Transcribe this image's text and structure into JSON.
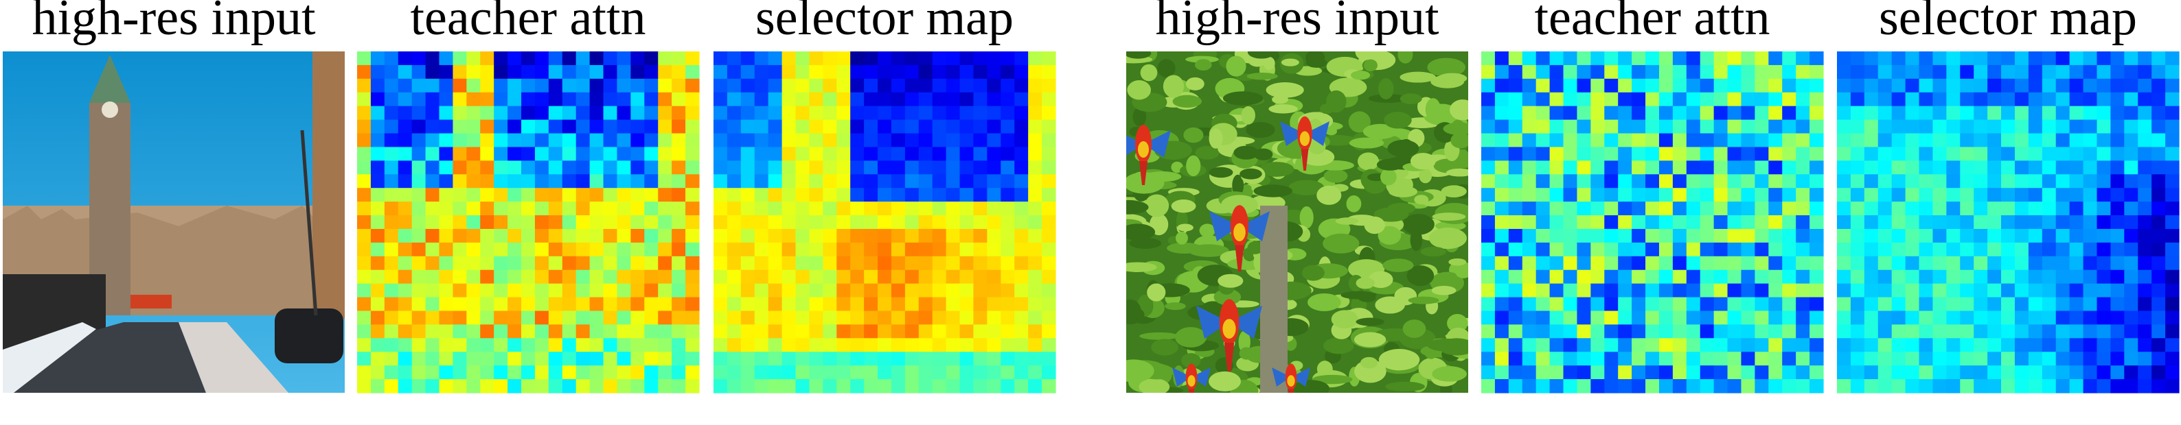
{
  "panels": [
    {
      "title": "high-res input"
    },
    {
      "title": "teacher attn"
    },
    {
      "title": "selector map"
    },
    {
      "title": "high-res input"
    },
    {
      "title": "teacher attn"
    },
    {
      "title": "selector map"
    }
  ]
}
